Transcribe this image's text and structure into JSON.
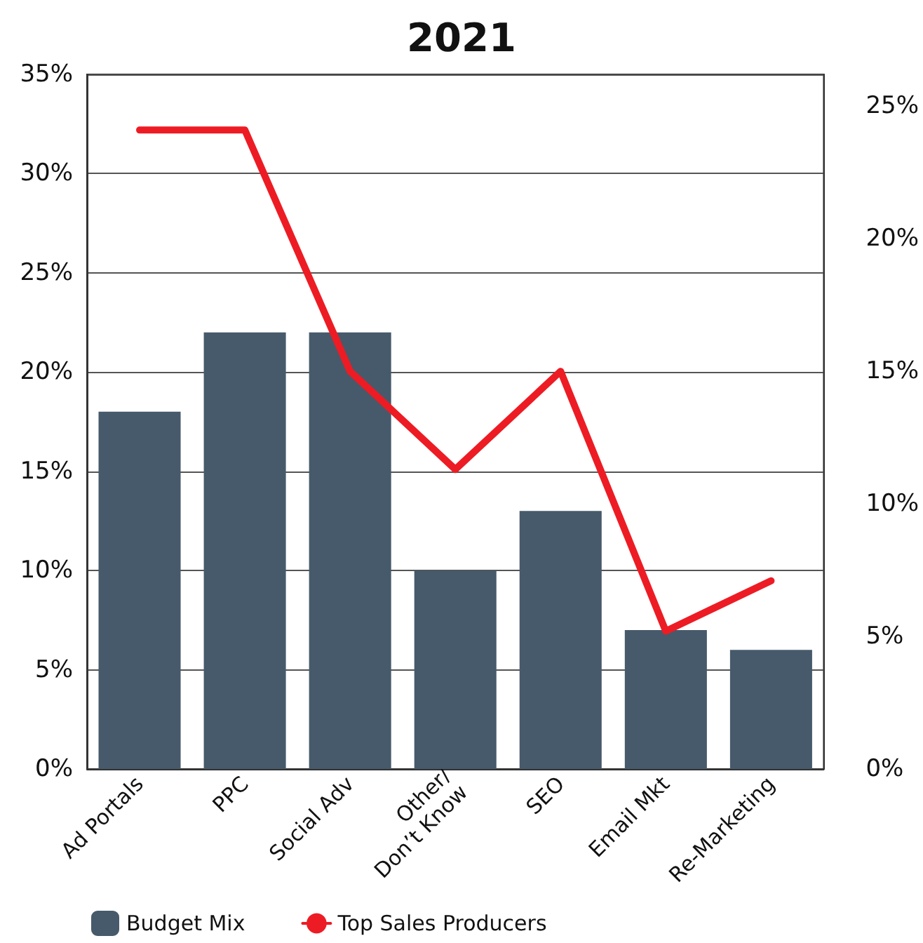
{
  "chart_data": {
    "type": "bar",
    "title": "2021",
    "categories": [
      "Ad Portals",
      "PPC",
      "Social Adv",
      "Other/\nDon’t Know",
      "SEO",
      "Email Mkt",
      "Re-Marketing"
    ],
    "series": [
      {
        "name": "Budget Mix",
        "color": "#465a6b",
        "values": [
          18,
          22,
          22,
          10,
          13,
          7,
          6
        ]
      },
      {
        "name": "Top Sales Producers",
        "type": "line",
        "axis": "y2",
        "color": "#ed1c24",
        "values": [
          24.1,
          24.1,
          15,
          11.3,
          15,
          5.2,
          7.1
        ]
      }
    ],
    "ylim": [
      0,
      35
    ],
    "yticks": [
      {
        "value": 0,
        "label": "0%"
      },
      {
        "value": 5,
        "label": "5%"
      },
      {
        "value": 10,
        "label": "10%"
      },
      {
        "value": 15,
        "label": "15%"
      },
      {
        "value": 20,
        "label": "20%"
      },
      {
        "value": 25,
        "label": "25%"
      },
      {
        "value": 30,
        "label": "30%"
      },
      {
        "value": 35,
        "label": "35%"
      }
    ],
    "y2lim": [
      0,
      26.2
    ],
    "y2ticks": [
      {
        "value": 0,
        "label": "0%"
      },
      {
        "value": 5,
        "label": "5%"
      },
      {
        "value": 10,
        "label": "10%"
      },
      {
        "value": 15,
        "label": "15%"
      },
      {
        "value": 20,
        "label": "20%"
      },
      {
        "value": 25,
        "label": "25%"
      }
    ],
    "grid": "y",
    "legend": "bottom left",
    "marker": "none"
  }
}
